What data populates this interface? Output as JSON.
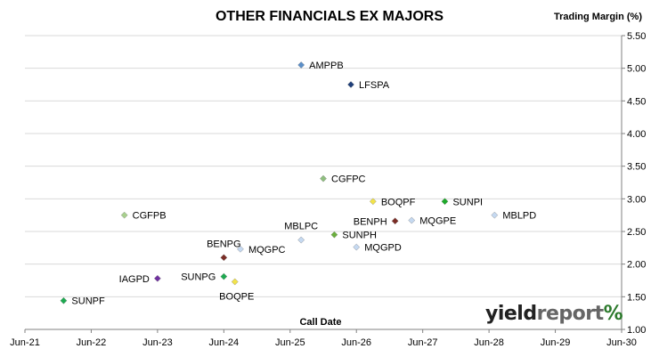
{
  "chart_data": {
    "type": "scatter",
    "title": "OTHER FINANCIALS EX MAJORS",
    "ylabel": "Trading Margin (%)",
    "xlabel": "Call Date",
    "x_ticks": [
      "Jun-21",
      "Jun-22",
      "Jun-23",
      "Jun-24",
      "Jun-25",
      "Jun-26",
      "Jun-27",
      "Jun-28",
      "Jun-29",
      "Jun-30"
    ],
    "xlim": [
      "Jun-21",
      "Jun-30"
    ],
    "ylim": [
      1.0,
      5.5
    ],
    "y_ticks": [
      "1.00",
      "1.50",
      "2.00",
      "2.50",
      "3.00",
      "3.50",
      "4.00",
      "4.50",
      "5.00",
      "5.50"
    ],
    "y_axis_position": "right",
    "grid": true,
    "legend": "none",
    "points": [
      {
        "label": "AMPPB",
        "x": "2025-08",
        "y": 5.05,
        "color": "#5b8fc9",
        "label_side": "right"
      },
      {
        "label": "LFSPA",
        "x": "2026-05",
        "y": 4.75,
        "color": "#1f3f7a",
        "label_side": "right"
      },
      {
        "label": "CGFPC",
        "x": "2025-12",
        "y": 3.31,
        "color": "#8fbf7f",
        "label_side": "right"
      },
      {
        "label": "BOQPF",
        "x": "2026-09",
        "y": 2.96,
        "color": "#f2e34a",
        "label_side": "right"
      },
      {
        "label": "SUNPI",
        "x": "2027-10",
        "y": 2.96,
        "color": "#1daa2a",
        "label_side": "right"
      },
      {
        "label": "CGFPB",
        "x": "2022-12",
        "y": 2.75,
        "color": "#a8d08d",
        "label_side": "right"
      },
      {
        "label": "MBLPD",
        "x": "2028-07",
        "y": 2.75,
        "color": "#c5d9f1",
        "label_side": "right"
      },
      {
        "label": "MQGPE",
        "x": "2027-04",
        "y": 2.67,
        "color": "#c5d9f1",
        "label_side": "right"
      },
      {
        "label": "BENPH",
        "x": "2027-01",
        "y": 2.66,
        "color": "#7b2d26",
        "label_side": "left"
      },
      {
        "label": "MBLPC",
        "x": "2025-08",
        "y": 2.37,
        "color": "#c5d9f1",
        "label_side": "above"
      },
      {
        "label": "SUNPH",
        "x": "2026-02",
        "y": 2.45,
        "color": "#6aaf3d",
        "label_side": "right"
      },
      {
        "label": "MQGPD",
        "x": "2026-06",
        "y": 2.26,
        "color": "#c5d9f1",
        "label_side": "right"
      },
      {
        "label": "MQGPC",
        "x": "2024-09",
        "y": 2.23,
        "color": "#c5d9f1",
        "label_side": "right"
      },
      {
        "label": "BENPG",
        "x": "2024-06",
        "y": 2.1,
        "color": "#7b2d26",
        "label_side": "above"
      },
      {
        "label": "IAGPD",
        "x": "2023-06",
        "y": 1.78,
        "color": "#7030a0",
        "label_side": "left"
      },
      {
        "label": "SUNPG",
        "x": "2024-06",
        "y": 1.81,
        "color": "#1daa50",
        "label_side": "left"
      },
      {
        "label": "BOQPE",
        "x": "2024-08",
        "y": 1.73,
        "color": "#f2e34a",
        "label_side": "below"
      },
      {
        "label": "SUNPF",
        "x": "2022-01",
        "y": 1.44,
        "color": "#1daa50",
        "label_side": "right"
      }
    ]
  },
  "logo": {
    "yield": "yield",
    "report": "report",
    "pct": "%"
  }
}
